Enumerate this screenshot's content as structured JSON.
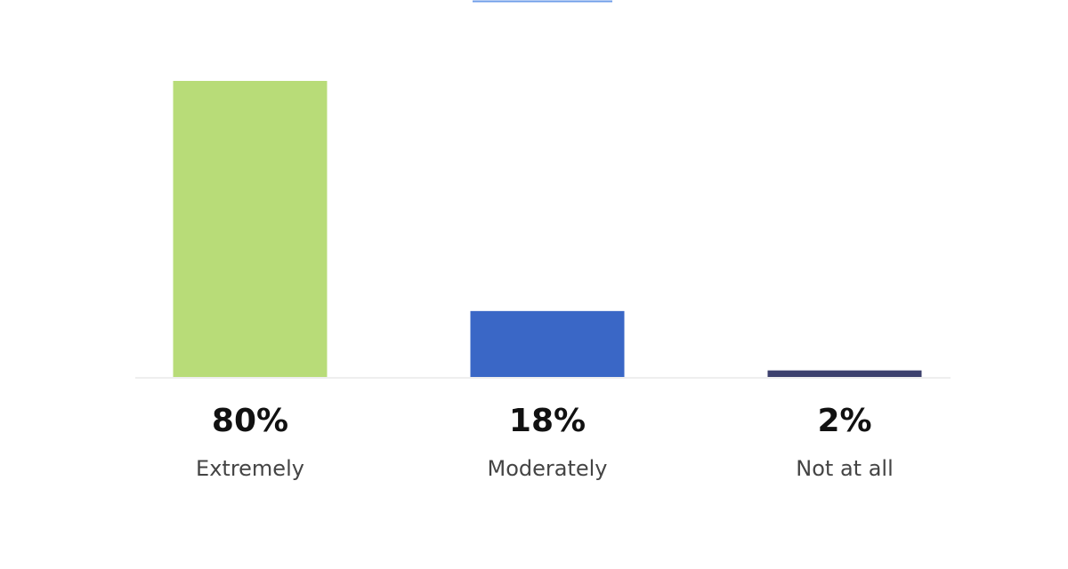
{
  "chart_data": {
    "type": "bar",
    "categories": [
      "Extremely",
      "Moderately",
      "Not at all"
    ],
    "values": [
      80,
      18,
      2
    ],
    "value_labels": [
      "80%",
      "18%",
      "2%"
    ],
    "unit": "%",
    "ylim": [
      0,
      80
    ],
    "grid": false,
    "legend": "none",
    "colors": [
      "#b8dc78",
      "#3a67c6",
      "#3d416e"
    ],
    "baseline_color": "#eeeeee",
    "header_accent_color": "#6f9ee8"
  }
}
